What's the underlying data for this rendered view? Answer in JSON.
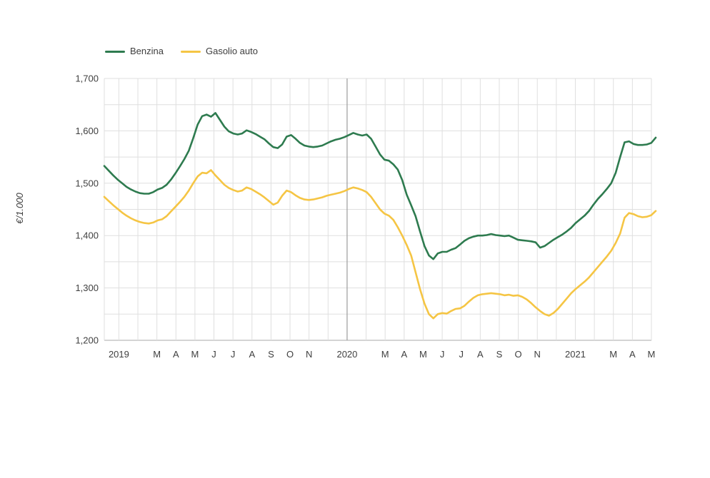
{
  "page": {
    "background": "#ffffff"
  },
  "colors": {
    "grid": "#dfdfdf",
    "grid_dark": "#a3a3a3",
    "axis_line": "#a8a8a8",
    "text": "#3f3f3f"
  },
  "y_axis": {
    "title": "€/1.000",
    "tick_labels": [
      "1,200",
      "1,300",
      "1,400",
      "1,500",
      "1,600",
      "1,700"
    ]
  },
  "chart_data": {
    "type": "line",
    "title": "",
    "ylabel": "€/1.000",
    "ylim": [
      1200,
      1700
    ],
    "y_major_ticks": [
      1200,
      1300,
      1400,
      1500,
      1600,
      1700
    ],
    "y_minor_step": 50,
    "grid": true,
    "legend_position": "top-left",
    "x_description": "Weekly observations, January 2019 - mid-May 2021",
    "x_tick_labels": [
      "2019",
      "",
      "M",
      "A",
      "M",
      "J",
      "J",
      "A",
      "S",
      "O",
      "N",
      "",
      "2020",
      "",
      "M",
      "A",
      "M",
      "J",
      "J",
      "A",
      "S",
      "O",
      "N",
      "",
      "2021",
      "",
      "M",
      "A",
      "M"
    ],
    "x_dark_gridline_index": 12,
    "series": [
      {
        "name": "Benzina",
        "color": "#2e7b4f",
        "values": [
          1533,
          1524,
          1515,
          1507,
          1500,
          1493,
          1488,
          1484,
          1481,
          1480,
          1480,
          1483,
          1488,
          1491,
          1497,
          1507,
          1519,
          1532,
          1546,
          1562,
          1586,
          1612,
          1628,
          1631,
          1627,
          1634,
          1621,
          1608,
          1599,
          1595,
          1593,
          1595,
          1601,
          1598,
          1594,
          1589,
          1584,
          1576,
          1569,
          1567,
          1574,
          1589,
          1592,
          1585,
          1577,
          1572,
          1570,
          1569,
          1570,
          1572,
          1576,
          1580,
          1583,
          1585,
          1588,
          1592,
          1596,
          1593,
          1591,
          1593,
          1585,
          1570,
          1555,
          1545,
          1543,
          1536,
          1526,
          1506,
          1478,
          1458,
          1437,
          1408,
          1380,
          1362,
          1355,
          1366,
          1369,
          1369,
          1373,
          1376,
          1383,
          1390,
          1395,
          1398,
          1400,
          1400,
          1401,
          1403,
          1401,
          1400,
          1399,
          1400,
          1396,
          1392,
          1391,
          1390,
          1389,
          1387,
          1377,
          1380,
          1386,
          1392,
          1397,
          1402,
          1408,
          1415,
          1424,
          1431,
          1438,
          1447,
          1459,
          1470,
          1479,
          1489,
          1500,
          1520,
          1550,
          1578,
          1580,
          1575,
          1573,
          1573,
          1574,
          1577,
          1587
        ]
      },
      {
        "name": "Gasolio auto",
        "color": "#f5c544",
        "values": [
          1474,
          1466,
          1458,
          1451,
          1444,
          1438,
          1433,
          1429,
          1426,
          1424,
          1423,
          1425,
          1429,
          1431,
          1437,
          1446,
          1455,
          1464,
          1474,
          1486,
          1500,
          1513,
          1520,
          1519,
          1525,
          1515,
          1506,
          1497,
          1491,
          1487,
          1484,
          1486,
          1492,
          1489,
          1484,
          1479,
          1473,
          1466,
          1459,
          1463,
          1476,
          1486,
          1483,
          1477,
          1472,
          1469,
          1468,
          1469,
          1471,
          1473,
          1476,
          1478,
          1480,
          1482,
          1485,
          1489,
          1492,
          1490,
          1487,
          1483,
          1474,
          1462,
          1450,
          1442,
          1438,
          1430,
          1416,
          1400,
          1382,
          1362,
          1330,
          1298,
          1270,
          1250,
          1242,
          1250,
          1252,
          1251,
          1256,
          1260,
          1261,
          1266,
          1274,
          1281,
          1286,
          1288,
          1289,
          1290,
          1289,
          1288,
          1286,
          1287,
          1285,
          1286,
          1283,
          1278,
          1271,
          1263,
          1256,
          1250,
          1247,
          1252,
          1260,
          1270,
          1280,
          1290,
          1298,
          1305,
          1312,
          1320,
          1330,
          1340,
          1350,
          1360,
          1371,
          1386,
          1404,
          1434,
          1443,
          1441,
          1437,
          1435,
          1436,
          1439,
          1447
        ]
      }
    ]
  }
}
